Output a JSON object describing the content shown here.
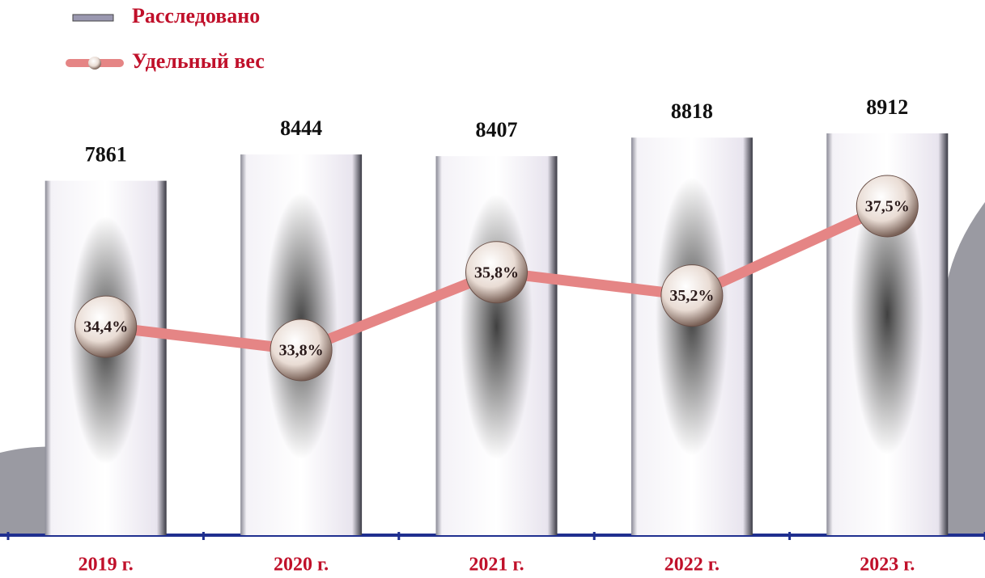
{
  "chart_data": {
    "type": "combo",
    "categories": [
      "2019 г.",
      "2020 г.",
      "2021 г.",
      "2022 г.",
      "2023 г."
    ],
    "series": [
      {
        "name": "Расследовано",
        "type": "bar",
        "color": "#b9a6e0",
        "values": [
          7861,
          8444,
          8407,
          8818,
          8912
        ]
      },
      {
        "name": "Удельный вес",
        "type": "line",
        "axis": "y2",
        "color": "#e58585",
        "values": [
          34.4,
          33.8,
          35.8,
          35.2,
          37.5
        ],
        "value_labels": [
          "34,4%",
          "33,8%",
          "35,8%",
          "35,2%",
          "37,5%"
        ]
      }
    ]
  }
}
